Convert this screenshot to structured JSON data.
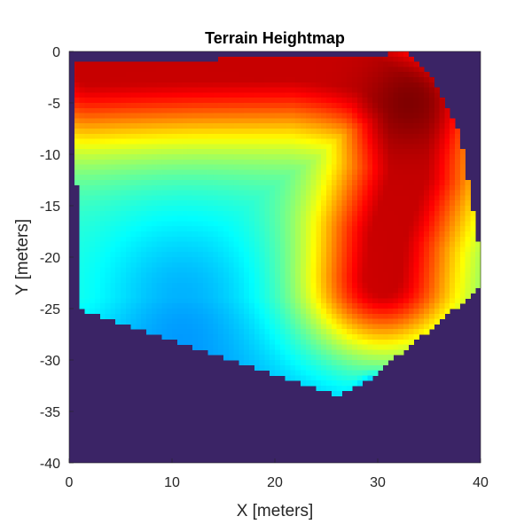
{
  "chart_data": {
    "type": "heatmap",
    "title": "Terrain Heightmap",
    "xlabel": "X [meters]",
    "ylabel": "Y [meters]",
    "xlim": [
      0,
      40
    ],
    "ylim": [
      -40,
      0
    ],
    "x_ticks": [
      0,
      10,
      20,
      30,
      40
    ],
    "y_ticks": [
      0,
      -5,
      -10,
      -15,
      -20,
      -25,
      -30,
      -35,
      -40
    ],
    "colormap": "jet",
    "background_color": "#3b2466",
    "valid_region_polygon": [
      [
        0.5,
        -1
      ],
      [
        29,
        -0.5
      ],
      [
        33,
        0
      ],
      [
        35,
        -2
      ],
      [
        38,
        -8
      ],
      [
        40,
        -20
      ],
      [
        40,
        -23
      ],
      [
        29,
        -32
      ],
      [
        26,
        -33.5
      ],
      [
        1,
        -25
      ]
    ],
    "height_features": [
      {
        "kind": "base",
        "value": 0.42
      },
      {
        "kind": "ridge",
        "value": 0.93,
        "points": [
          [
            2,
            -1.5
          ],
          [
            12,
            -1.2
          ],
          [
            22,
            -1
          ],
          [
            29,
            -2
          ],
          [
            33,
            -5
          ],
          [
            33,
            -12
          ],
          [
            31,
            -18
          ],
          [
            30.5,
            -22
          ]
        ],
        "width": 3.2
      },
      {
        "kind": "peak",
        "value": 1.0,
        "center": [
          33,
          -5
        ],
        "radius": 3
      },
      {
        "kind": "basin",
        "value": 0.3,
        "center": [
          11,
          -24
        ],
        "radius": 6
      },
      {
        "kind": "pit",
        "value": 0.0,
        "center": [
          30,
          -33.5
        ],
        "radius": 1
      }
    ]
  }
}
